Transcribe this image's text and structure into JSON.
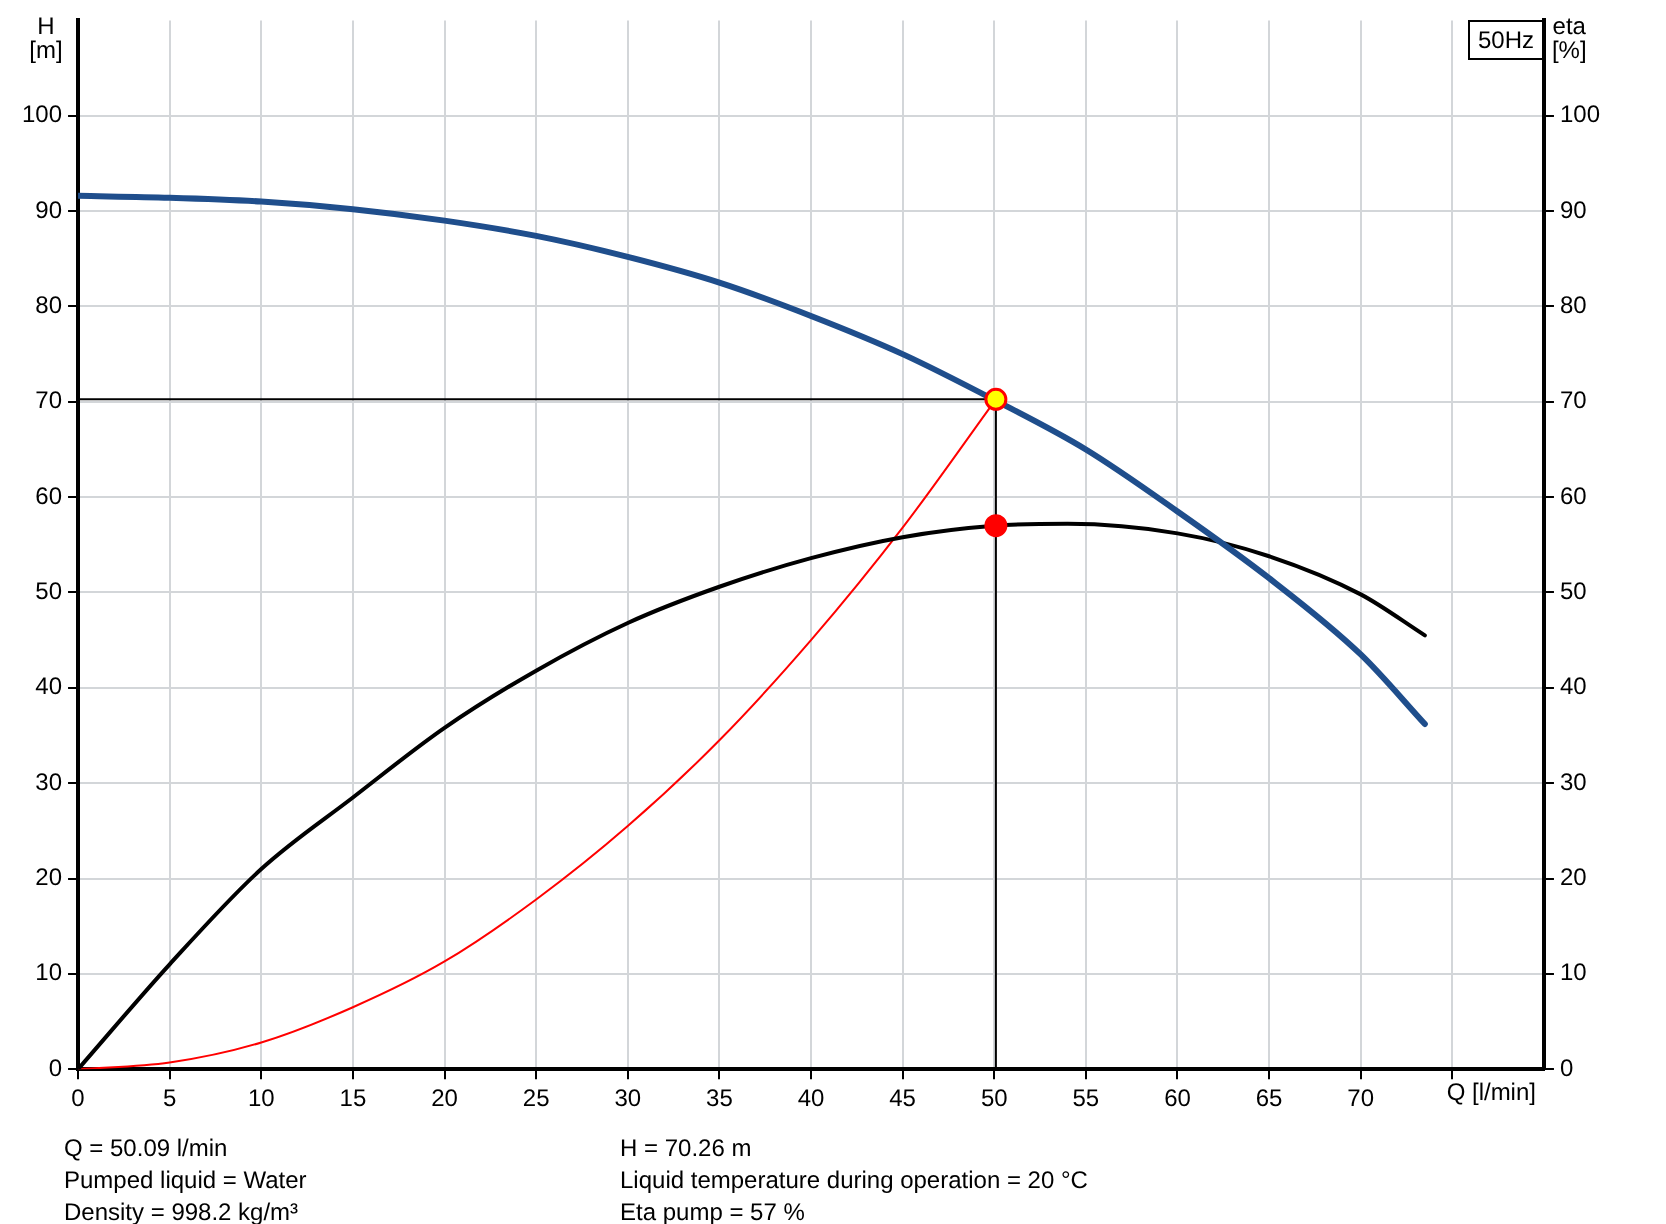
{
  "chart_data": {
    "type": "line",
    "title": "50Hz",
    "xlabel": "Q [l/min]",
    "ylabel": "H [m]",
    "y2label": "eta [%]",
    "xlim": [
      0,
      80
    ],
    "xticks": [
      0,
      5,
      10,
      15,
      20,
      25,
      30,
      35,
      40,
      45,
      50,
      55,
      60,
      65,
      70,
      {
        "value": 75,
        "label": null
      }
    ],
    "ylim": [
      0,
      110
    ],
    "yticks": [
      0,
      10,
      20,
      30,
      40,
      50,
      60,
      70,
      80,
      90,
      100
    ],
    "y2lim": [
      0,
      110
    ],
    "y2ticks": [
      0,
      10,
      20,
      30,
      40,
      50,
      60,
      70,
      80,
      90,
      100
    ],
    "grid": true,
    "legend": false,
    "series": [
      {
        "color": "#1f4e8c",
        "x": [
          0,
          5,
          10,
          15,
          20,
          25,
          30,
          35,
          40,
          45,
          50,
          55,
          60,
          65,
          70,
          73.5
        ],
        "values": [
          91.6,
          91.4,
          91,
          90.2,
          89,
          87.4,
          85.2,
          82.5,
          79,
          75,
          70.2,
          65,
          58.5,
          51.5,
          43.5,
          36.2
        ]
      },
      {
        "color": "#000000",
        "axis": "y2",
        "x": [
          0,
          5,
          10,
          15,
          20,
          25,
          30,
          35,
          40,
          45,
          50,
          54,
          60,
          65,
          70,
          73.5
        ],
        "values": [
          0,
          11,
          21,
          28.5,
          35.8,
          41.8,
          46.8,
          50.6,
          53.6,
          55.8,
          57,
          57.2,
          56.2,
          53.8,
          49.8,
          45.5
        ]
      },
      {
        "color": "#ff0000",
        "x": [
          0,
          5,
          10,
          15,
          20,
          25,
          30,
          35,
          40,
          45,
          50.09
        ],
        "values": [
          0,
          0.7,
          2.8,
          6.5,
          11.3,
          17.8,
          25.5,
          34.5,
          45,
          56.8,
          70.26
        ]
      },
      {
        "color": "#000000",
        "x": [
          0,
          50.09,
          50.09
        ],
        "values": [
          70.26,
          70.26,
          0
        ]
      },
      {
        "type": "scatter",
        "color": "#ffff00",
        "marker": "circle",
        "x": [
          50.09
        ],
        "values": [
          70.26
        ]
      },
      {
        "type": "scatter",
        "color": "#ff0000",
        "marker": "circle",
        "axis": "y2",
        "x": [
          50.09
        ],
        "values": [
          57
        ]
      }
    ],
    "annotations": [
      "Q = 50.09 l/min",
      "H = 70.26 m",
      "Pumped liquid = Water",
      "Liquid temperature during operation = 20 °C",
      "Density = 998.2 kg/m³",
      "Eta pump = 57 %"
    ]
  }
}
